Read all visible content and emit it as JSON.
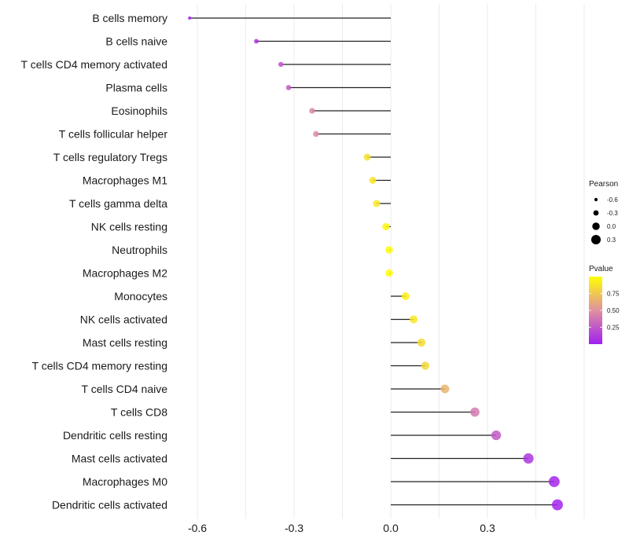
{
  "chart_data": {
    "type": "lollipop",
    "title": "",
    "xlabel": "",
    "ylabel": "",
    "xlim": [
      -0.63,
      0.55
    ],
    "x_ticks": [
      -0.6,
      -0.3,
      0.0,
      0.3
    ],
    "x_tick_labels": [
      "-0.6",
      "-0.3",
      "0.0",
      "0.3"
    ],
    "grid": true,
    "categories": [
      "B cells memory",
      "B cells naive",
      "T cells CD4 memory activated",
      "Plasma cells",
      "Eosinophils",
      "T cells follicular helper",
      "T cells regulatory  Tregs",
      "Macrophages M1",
      "T cells gamma delta",
      "NK cells resting",
      "Neutrophils",
      "Macrophages M2",
      "Monocytes",
      "NK cells activated",
      "Mast cells resting",
      "T cells CD4 memory resting",
      "T cells CD4 naive",
      "T cells CD8",
      "Dendritic cells resting",
      "Mast cells activated",
      "Macrophages M0",
      "Dendritic cells activated"
    ],
    "pearson": [
      -0.624,
      -0.417,
      -0.341,
      -0.317,
      -0.244,
      -0.232,
      -0.073,
      -0.056,
      -0.044,
      -0.015,
      -0.005,
      -0.005,
      0.046,
      0.071,
      0.095,
      0.107,
      0.168,
      0.261,
      0.327,
      0.427,
      0.507,
      0.517
    ],
    "pvalue": [
      0.01,
      0.08,
      0.24,
      0.28,
      0.46,
      0.48,
      0.86,
      0.88,
      0.89,
      0.97,
      0.99,
      0.99,
      0.93,
      0.89,
      0.84,
      0.82,
      0.66,
      0.4,
      0.26,
      0.1,
      0.03,
      0.02
    ],
    "legend_size": {
      "title": "Pearson",
      "values": [
        -0.6,
        -0.3,
        0.0,
        0.3
      ],
      "labels": [
        "-0.6",
        "-0.3",
        "0.0",
        "0.3"
      ],
      "position": "right"
    },
    "legend_color": {
      "title": "Pvalue",
      "ticks": [
        0.25,
        0.5,
        0.75
      ],
      "labels": [
        "0.25",
        "0.50",
        "0.75"
      ],
      "range": [
        0.0,
        1.0
      ],
      "low_color": "#A020F0",
      "mid_color": "#E090A0",
      "high_color": "#FFFF00",
      "position": "right"
    }
  }
}
